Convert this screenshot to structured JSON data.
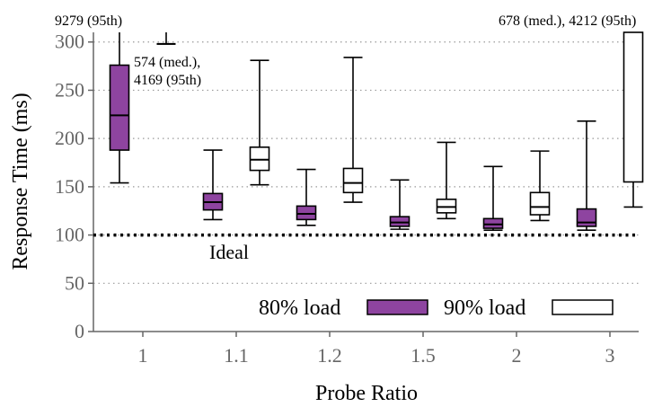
{
  "chart_data": {
    "type": "boxplot",
    "xlabel": "Probe Ratio",
    "ylabel": "Response Time (ms)",
    "ylim": [
      0,
      310
    ],
    "yticks": [
      0,
      50,
      100,
      150,
      200,
      250,
      300
    ],
    "grid": true,
    "categories": [
      "1",
      "1.1",
      "1.2",
      "1.5",
      "2",
      "3"
    ],
    "ideal": {
      "value": 100,
      "label": "Ideal"
    },
    "legend": {
      "position": "bottom-right",
      "entries": [
        "80% load",
        "90% load"
      ]
    },
    "series": [
      {
        "name": "80% load",
        "color": "#8e44a0",
        "boxes": [
          {
            "category": "1",
            "whisker_low": 154,
            "q1": 188,
            "median": 224,
            "q3": 276,
            "whisker_high": 310
          },
          {
            "category": "1.1",
            "whisker_low": 116,
            "q1": 126,
            "median": 134,
            "q3": 143,
            "whisker_high": 188
          },
          {
            "category": "1.2",
            "whisker_low": 110,
            "q1": 116,
            "median": 122,
            "q3": 130,
            "whisker_high": 168
          },
          {
            "category": "1.5",
            "whisker_low": 106,
            "q1": 109,
            "median": 113,
            "q3": 119,
            "whisker_high": 157
          },
          {
            "category": "2",
            "whisker_low": 105,
            "q1": 107,
            "median": 111,
            "q3": 117,
            "whisker_high": 171
          },
          {
            "category": "3",
            "whisker_low": 105,
            "q1": 109,
            "median": 113,
            "q3": 127,
            "whisker_high": 218
          }
        ]
      },
      {
        "name": "90% load",
        "color": "#ffffff",
        "boxes": [
          {
            "category": "1",
            "whisker_low": 298,
            "q1": 298,
            "median": 298,
            "q3": 298,
            "whisker_high": 310
          },
          {
            "category": "1.1",
            "whisker_low": 152,
            "q1": 167,
            "median": 178,
            "q3": 191,
            "whisker_high": 281
          },
          {
            "category": "1.2",
            "whisker_low": 134,
            "q1": 144,
            "median": 154,
            "q3": 169,
            "whisker_high": 284
          },
          {
            "category": "1.5",
            "whisker_low": 117,
            "q1": 123,
            "median": 129,
            "q3": 137,
            "whisker_high": 196
          },
          {
            "category": "2",
            "whisker_low": 115,
            "q1": 121,
            "median": 129,
            "q3": 144,
            "whisker_high": 187
          },
          {
            "category": "3",
            "whisker_low": 129,
            "q1": 155,
            "median": 310,
            "q3": 310,
            "whisker_high": 310
          }
        ]
      }
    ],
    "annotations": [
      {
        "id": "a1",
        "text": "9279 (95th)"
      },
      {
        "id": "a2a",
        "text": "574 (med.),"
      },
      {
        "id": "a2b",
        "text": "4169 (95th)"
      },
      {
        "id": "a3",
        "text": "678 (med.), 4212 (95th)"
      }
    ]
  }
}
